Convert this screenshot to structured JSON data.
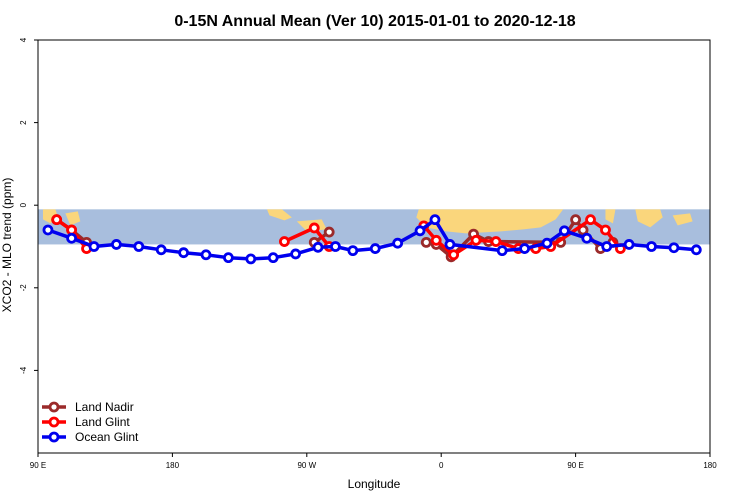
{
  "chart_data": {
    "type": "line",
    "title": "0-15N Annual Mean (Ver 10)   2015-01-01 to 2020-12-18",
    "xlabel": "Longitude",
    "ylabel": "XCO2 - MLO trend (ppm)",
    "xlim": [
      -90,
      180
    ],
    "ylim": [
      -6,
      4
    ],
    "x_ticks": [
      {
        "value": -90,
        "label": "90 E"
      },
      {
        "value": -36,
        "label": "180"
      },
      {
        "value": 18,
        "label": "90 W"
      },
      {
        "value": 72,
        "label": "0"
      },
      {
        "value": 126,
        "label": "90 E"
      },
      {
        "value": 180,
        "label": "180"
      }
    ],
    "y_ticks": [
      {
        "value": 4,
        "label": "4"
      },
      {
        "value": 2,
        "label": "2"
      },
      {
        "value": 0,
        "label": "0"
      },
      {
        "value": -2,
        "label": "-2"
      },
      {
        "value": -4,
        "label": "-4"
      }
    ],
    "grid": false,
    "legend_position": "bottom-left",
    "background_band": {
      "y_range": [
        -0.95,
        -0.1
      ],
      "ocean_color": "#a8bedd",
      "land_color": "#fad67c"
    },
    "series": [
      {
        "name": "Land Nadir",
        "color": "#9b2a2a",
        "x": [
          -82.5,
          -76.5,
          -70.5,
          21,
          27,
          66,
          70,
          76,
          85,
          91,
          120,
          126,
          129,
          136,
          141
        ],
        "y": [
          -0.35,
          -0.6,
          -0.9,
          -0.9,
          -0.65,
          -0.9,
          -0.95,
          -1.25,
          -0.7,
          -0.88,
          -0.9,
          -0.35,
          -0.6,
          -1.05,
          -0.9
        ]
      },
      {
        "name": "Land Glint",
        "color": "#ff0000",
        "x": [
          -82.5,
          -76.5,
          -70.5,
          9,
          21,
          27,
          65,
          70,
          77,
          86,
          94,
          103,
          110,
          116,
          132,
          138,
          144
        ],
        "y": [
          -0.35,
          -0.6,
          -1.05,
          -0.88,
          -0.55,
          -1.0,
          -0.5,
          -0.85,
          -1.2,
          -0.85,
          -0.88,
          -1.05,
          -1.05,
          -1.0,
          -0.35,
          -0.6,
          -1.05
        ]
      },
      {
        "name": "Ocean Glint",
        "color": "#0000ee",
        "x": [
          -86,
          -76.5,
          -67.5,
          -58.5,
          -49.5,
          -40.5,
          -31.5,
          -22.5,
          -13.5,
          -4.5,
          4.5,
          13.5,
          22.5,
          29.5,
          36.5,
          45.5,
          54.5,
          63.5,
          69.5,
          75.5,
          96.5,
          105.5,
          114.5,
          121.5,
          130.5,
          138.5,
          147.5,
          156.5,
          165.5,
          174.5
        ],
        "y": [
          -0.6,
          -0.8,
          -1.0,
          -0.95,
          -1.0,
          -1.08,
          -1.15,
          -1.2,
          -1.27,
          -1.3,
          -1.27,
          -1.18,
          -1.02,
          -1.0,
          -1.1,
          -1.05,
          -0.92,
          -0.62,
          -0.35,
          -0.95,
          -1.1,
          -1.05,
          -0.92,
          -0.62,
          -0.8,
          -1.0,
          -0.95,
          -1.0,
          -1.03,
          -1.08
        ]
      }
    ]
  }
}
